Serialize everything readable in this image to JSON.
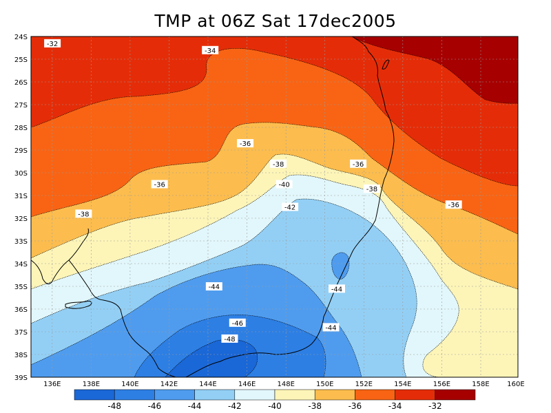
{
  "title": "TMP at 06Z Sat 17dec2005",
  "chart_data": {
    "type": "contour_map",
    "variable": "TMP",
    "units": "",
    "lon_range": [
      135,
      160
    ],
    "lat_range": [
      -39,
      -24
    ],
    "lon_ticks": [
      "136E",
      "138E",
      "140E",
      "142E",
      "144E",
      "146E",
      "148E",
      "150E",
      "152E",
      "154E",
      "156E",
      "158E",
      "160E"
    ],
    "lat_ticks": [
      "24S",
      "25S",
      "26S",
      "27S",
      "28S",
      "29S",
      "30S",
      "31S",
      "32S",
      "33S",
      "34S",
      "35S",
      "36S",
      "37S",
      "38S",
      "39S"
    ],
    "contour_labels": [
      {
        "text": "-32",
        "lon": 136.1,
        "lat": -24.3
      },
      {
        "text": "-34",
        "lon": 144.2,
        "lat": -24.6
      },
      {
        "text": "-36",
        "lon": 146.0,
        "lat": -28.7
      },
      {
        "text": "-36",
        "lon": 141.6,
        "lat": -30.5
      },
      {
        "text": "-38",
        "lon": 137.7,
        "lat": -31.8
      },
      {
        "text": "-38",
        "lon": 147.7,
        "lat": -29.6
      },
      {
        "text": "-36",
        "lon": 151.8,
        "lat": -29.6
      },
      {
        "text": "-38",
        "lon": 152.5,
        "lat": -30.7
      },
      {
        "text": "-40",
        "lon": 148.0,
        "lat": -30.5
      },
      {
        "text": "-42",
        "lon": 148.3,
        "lat": -31.5
      },
      {
        "text": "-36",
        "lon": 156.7,
        "lat": -31.4
      },
      {
        "text": "-44",
        "lon": 144.4,
        "lat": -35.0
      },
      {
        "text": "-44",
        "lon": 150.7,
        "lat": -35.1
      },
      {
        "text": "-44",
        "lon": 150.4,
        "lat": -36.8
      },
      {
        "text": "-46",
        "lon": 145.6,
        "lat": -36.6
      },
      {
        "text": "-48",
        "lon": 145.2,
        "lat": -37.3
      }
    ],
    "colorbar": {
      "labels": [
        "-48",
        "-46",
        "-44",
        "-42",
        "-40",
        "-38",
        "-36",
        "-34",
        "-32"
      ],
      "colors": [
        "#1a67d7",
        "#2d7fe4",
        "#4f9cef",
        "#93cff5",
        "#e2f7fb",
        "#fdf5b8",
        "#fcbd4e",
        "#f86414",
        "#e42d08",
        "#a60000"
      ]
    }
  },
  "colors": {
    "c_lt48": "#1a67d7",
    "c_48_46": "#2d7fe4",
    "c_46_44": "#4f9cef",
    "c_44_42": "#93cff5",
    "c_42_40": "#e2f7fb",
    "c_40_38": "#fdf5b8",
    "c_38_36": "#fcbd4e",
    "c_36_34": "#f86414",
    "c_34_32": "#e42d08",
    "c_gt32": "#a60000"
  }
}
